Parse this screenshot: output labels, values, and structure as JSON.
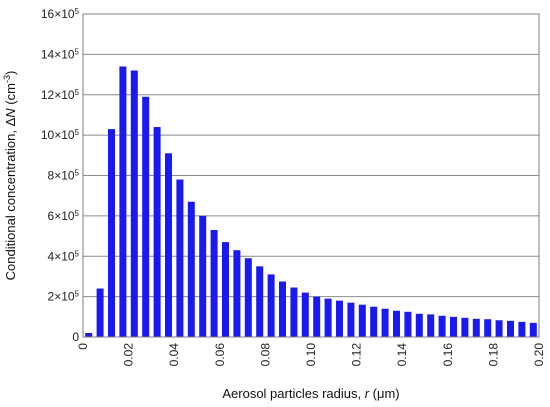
{
  "chart_data": {
    "type": "bar",
    "xlabel": "Aerosol particles radius, r (μm)",
    "xlabel_parts": {
      "before": "Aerosol particles radius, ",
      "var": "r",
      "after": " (μm)"
    },
    "ylabel": "Conditional concentration, ΔN (cm⁻³)",
    "ylabel_parts": {
      "before": "Conditional concentration, Δ",
      "var": "N",
      "after": " (cm",
      "sup": "-3",
      "end": ")"
    },
    "xlim": [
      0,
      0.2
    ],
    "ylim": [
      0,
      1600000
    ],
    "x_tick_labels": [
      "0",
      "0.02",
      "0.04",
      "0.06",
      "0.08",
      "0.10",
      "0.12",
      "0.14",
      "0.16",
      "0.18",
      "0.20"
    ],
    "x_tick_values": [
      0,
      0.02,
      0.04,
      0.06,
      0.08,
      0.1,
      0.12,
      0.14,
      0.16,
      0.18,
      0.2
    ],
    "y_ticks": [
      {
        "value": 0,
        "base": "0",
        "exp": ""
      },
      {
        "value": 200000,
        "base": "2×10",
        "exp": "5"
      },
      {
        "value": 400000,
        "base": "4×10",
        "exp": "5"
      },
      {
        "value": 600000,
        "base": "6×10",
        "exp": "5"
      },
      {
        "value": 800000,
        "base": "8×10",
        "exp": "5"
      },
      {
        "value": 1000000,
        "base": "10×10",
        "exp": "5"
      },
      {
        "value": 1200000,
        "base": "12×10",
        "exp": "5"
      },
      {
        "value": 1400000,
        "base": "14×10",
        "exp": "5"
      },
      {
        "value": 1600000,
        "base": "16×10",
        "exp": "5"
      }
    ],
    "grid": "horizontal",
    "legend": "none",
    "bar_color": "#1a1af0",
    "series": [
      {
        "x": [
          0.0025,
          0.0075,
          0.0125,
          0.0175,
          0.0225,
          0.0275,
          0.0325,
          0.0375,
          0.0425,
          0.0475,
          0.0525,
          0.0575,
          0.0625,
          0.0675,
          0.0725,
          0.0775,
          0.0825,
          0.0875,
          0.0925,
          0.0975,
          0.1025,
          0.1075,
          0.1125,
          0.1175,
          0.1225,
          0.1275,
          0.1325,
          0.1375,
          0.1425,
          0.1475,
          0.1525,
          0.1575,
          0.1625,
          0.1675,
          0.1725,
          0.1775,
          0.1825,
          0.1875,
          0.1925,
          0.1975
        ],
        "values": [
          20000,
          240000,
          1030000,
          1340000,
          1320000,
          1190000,
          1040000,
          910000,
          780000,
          670000,
          600000,
          530000,
          470000,
          430000,
          390000,
          350000,
          310000,
          275000,
          245000,
          220000,
          200000,
          190000,
          180000,
          170000,
          160000,
          150000,
          140000,
          130000,
          125000,
          115000,
          112000,
          105000,
          100000,
          95000,
          90000,
          88000,
          83000,
          80000,
          75000,
          70000
        ]
      }
    ]
  }
}
